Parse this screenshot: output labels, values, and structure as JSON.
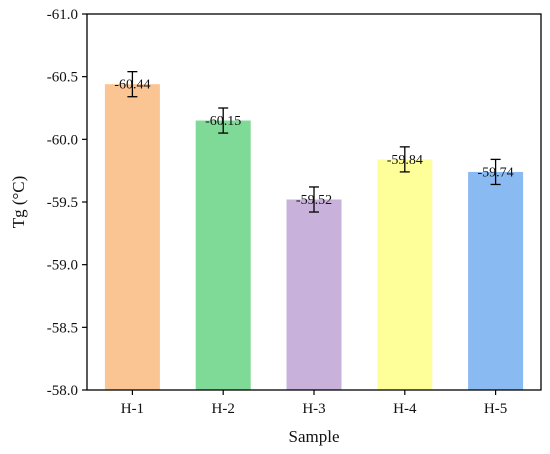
{
  "chart_data": {
    "type": "bar",
    "title": "",
    "xlabel": "Sample",
    "ylabel": "Tg (°C)",
    "categories": [
      "H-1",
      "H-2",
      "H-3",
      "H-4",
      "H-5"
    ],
    "values": [
      -60.44,
      -60.15,
      -59.52,
      -59.84,
      -59.74
    ],
    "value_labels": [
      "-60.44",
      "-60.15",
      "-59.52",
      "-59.84",
      "-59.74"
    ],
    "error": [
      0.1,
      0.1,
      0.1,
      0.1,
      0.1
    ],
    "colors": [
      "#FBC593",
      "#7FD997",
      "#C8B1DA",
      "#FFFF99",
      "#8ABAF2"
    ],
    "ylim": [
      -58.0,
      -61.0
    ],
    "y_axis_inverted": true,
    "yticks": [
      -58.0,
      -58.5,
      -59.0,
      -59.5,
      -60.0,
      -60.5,
      -61.0
    ],
    "ytick_labels": [
      "-58.0",
      "-58.5",
      "-59.0",
      "-59.5",
      "-60.0",
      "-60.5",
      "-61.0"
    ],
    "grid": false,
    "legend": "none"
  }
}
